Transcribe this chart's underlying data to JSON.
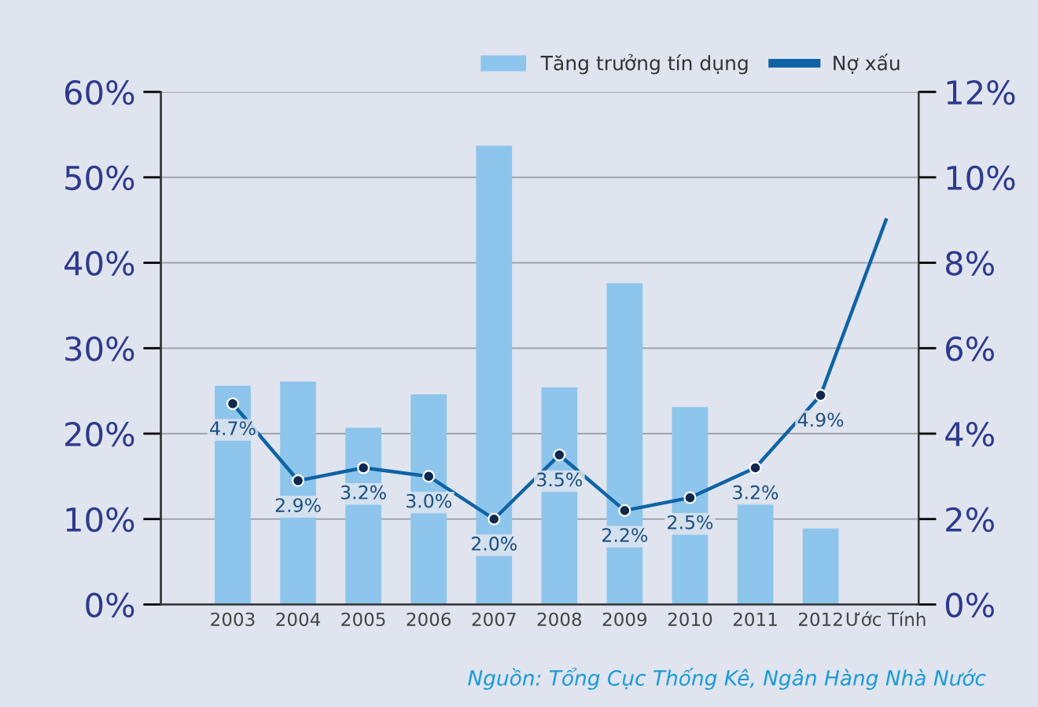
{
  "chart_data": {
    "type": "bar",
    "categories": [
      "2003",
      "2004",
      "2005",
      "2006",
      "2007",
      "2008",
      "2009",
      "2010",
      "2011",
      "2012",
      "Ước Tính"
    ],
    "series": [
      {
        "name": "Tăng trưởng tín dụng",
        "color": "#8dc5ec",
        "values": [
          25.6,
          26.1,
          20.7,
          24.6,
          53.7,
          25.4,
          37.6,
          23.1,
          11.9,
          8.9,
          null
        ]
      },
      {
        "name": "Nợ xấu",
        "type": "line",
        "axis": "y2",
        "color": "#0e63a4",
        "marker": "circle",
        "values": [
          4.7,
          2.9,
          3.2,
          3.0,
          2.0,
          3.5,
          2.2,
          2.5,
          3.2,
          4.9,
          9.0
        ],
        "value_labels": [
          "4.7%",
          "2.9%",
          "3.2%",
          "3.0%",
          "2.0%",
          "3.5%",
          "2.2%",
          "2.5%",
          "3.2%",
          "4.9%",
          null
        ]
      }
    ],
    "ylim": [
      0,
      60
    ],
    "yticks": [
      {
        "value": 0,
        "label": "0%"
      },
      {
        "value": 10,
        "label": "10%"
      },
      {
        "value": 20,
        "label": "20%"
      },
      {
        "value": 30,
        "label": "30%"
      },
      {
        "value": 40,
        "label": "40%"
      },
      {
        "value": 50,
        "label": "50%"
      },
      {
        "value": 60,
        "label": "60%"
      }
    ],
    "y2lim": [
      0,
      12
    ],
    "y2ticks": [
      {
        "value": 0,
        "label": "0%"
      },
      {
        "value": 2,
        "label": "2%"
      },
      {
        "value": 4,
        "label": "4%"
      },
      {
        "value": 6,
        "label": "6%"
      },
      {
        "value": 8,
        "label": "8%"
      },
      {
        "value": 10,
        "label": "10%"
      },
      {
        "value": 12,
        "label": "12%"
      }
    ],
    "grid": "y",
    "legend": "top right",
    "annotations": [
      "Nguồn: Tổng Cục Thống Kê, Ngân Hàng Nhà Nước"
    ]
  }
}
